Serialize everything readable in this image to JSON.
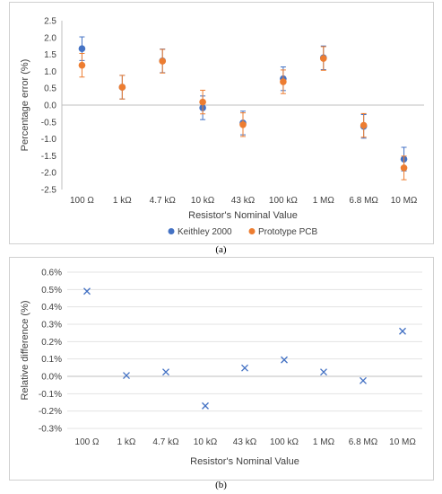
{
  "panels": {
    "a": {
      "caption": "(a)"
    },
    "b": {
      "caption": "(b)"
    }
  },
  "chart_data": [
    {
      "type": "scatter",
      "title": "",
      "xlabel": "Resistor's Nominal Value",
      "ylabel": "Percentage error (%)",
      "categories": [
        "100 Ω",
        "1 kΩ",
        "4.7 kΩ",
        "10 kΩ",
        "43 kΩ",
        "100 kΩ",
        "1 MΩ",
        "6.8 MΩ",
        "10 MΩ"
      ],
      "ylim": [
        -2.5,
        2.5
      ],
      "yticks": [
        "2.5",
        "2.0",
        "1.5",
        "1.0",
        "0.5",
        "0.0",
        "-0.5",
        "-1.0",
        "-1.5",
        "-2.0",
        "-2.5"
      ],
      "legend_position": "bottom",
      "grid": false,
      "series": [
        {
          "name": "Keithley 2000",
          "color": "#4472c4",
          "values": [
            1.67,
            0.53,
            1.31,
            -0.08,
            -0.53,
            0.78,
            1.4,
            -0.63,
            -1.6
          ],
          "error": [
            0.35,
            0.35,
            0.35,
            0.35,
            0.35,
            0.35,
            0.35,
            0.35,
            0.35
          ]
        },
        {
          "name": "Prototype PCB",
          "color": "#ed7d31",
          "values": [
            1.18,
            0.53,
            1.3,
            0.09,
            -0.58,
            0.69,
            1.38,
            -0.6,
            -1.86
          ],
          "error": [
            0.35,
            0.35,
            0.35,
            0.35,
            0.35,
            0.35,
            0.35,
            0.35,
            0.35
          ]
        }
      ]
    },
    {
      "type": "scatter",
      "title": "",
      "xlabel": "Resistor's Nominal Value",
      "ylabel": "Relative difference (%)",
      "categories": [
        "100 Ω",
        "1 kΩ",
        "4.7 kΩ",
        "10 kΩ",
        "43 kΩ",
        "100 kΩ",
        "1 MΩ",
        "6.8 MΩ",
        "10 MΩ"
      ],
      "ylim": [
        -0.3,
        0.6
      ],
      "yticks": [
        "0.6%",
        "0.5%",
        "0.4%",
        "0.3%",
        "0.2%",
        "0.1%",
        "0.0%",
        "-0.1%",
        "-0.2%",
        "-0.3%"
      ],
      "grid": true,
      "marker": "x",
      "color": "#4472c4",
      "values": [
        0.49,
        0.005,
        0.025,
        -0.17,
        0.048,
        0.095,
        0.025,
        -0.025,
        0.26
      ]
    }
  ]
}
